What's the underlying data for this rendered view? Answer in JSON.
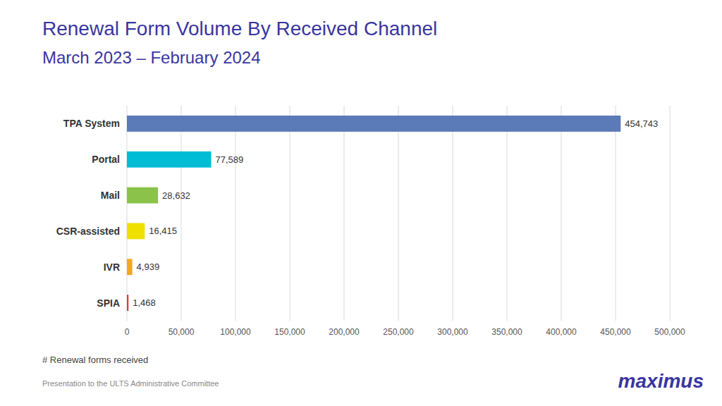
{
  "chart_data": {
    "type": "bar",
    "orientation": "horizontal",
    "title": "Renewal Form Volume By Received Channel",
    "subtitle": "March 2023 – February 2024",
    "categories": [
      "TPA System",
      "Portal",
      "Mail",
      "CSR-assisted",
      "IVR",
      "SPIA"
    ],
    "values": [
      454743,
      77589,
      28632,
      16415,
      4939,
      1468
    ],
    "value_labels": [
      "454,743",
      "77,589",
      "28,632",
      "16,415",
      "4,939",
      "1,468"
    ],
    "colors": [
      "#5b7ab8",
      "#00bcd4",
      "#8bc34a",
      "#f0e000",
      "#f5a623",
      "#e53935"
    ],
    "xlim": [
      0,
      500000
    ],
    "xticks": [
      0,
      {
        "value": 50000,
        "label": "50,000"
      },
      {
        "value": 100000,
        "label": "100,000"
      },
      {
        "value": 150000,
        "label": "150,000"
      },
      {
        "value": 200000,
        "label": "200,000"
      },
      {
        "value": 250000,
        "label": "250,000"
      },
      {
        "value": 300000,
        "label": "300,000"
      },
      {
        "value": 350000,
        "label": "350,000"
      },
      {
        "value": 400000,
        "label": "400,000"
      },
      {
        "value": 450000,
        "label": "450,000"
      },
      {
        "value": 500000,
        "label": "500,000"
      }
    ],
    "grid": true,
    "data_labels": true,
    "annotations": [
      "# Renewal forms received",
      "Presentation to the ULTS Administrative Committee",
      "maximus"
    ]
  }
}
